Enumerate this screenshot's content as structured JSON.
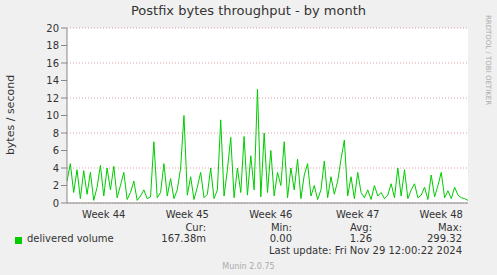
{
  "chart_data": {
    "type": "line",
    "title": "Postfix bytes throughput - by month",
    "y_label": "bytes / second",
    "categories": [
      null,
      null,
      null,
      null,
      null,
      null,
      null,
      null,
      null,
      null,
      null,
      "Week 44",
      null,
      null,
      null,
      null,
      null,
      null,
      null,
      null,
      null,
      null,
      null,
      null,
      null,
      null,
      null,
      null,
      null,
      null,
      null,
      null,
      null,
      null,
      null,
      null,
      "Week 45",
      null,
      null,
      null,
      null,
      null,
      null,
      null,
      null,
      null,
      null,
      null,
      null,
      null,
      null,
      null,
      null,
      null,
      null,
      null,
      null,
      null,
      null,
      null,
      null,
      "Week 46",
      null,
      null,
      null,
      null,
      null,
      null,
      null,
      null,
      null,
      null,
      null,
      null,
      null,
      null,
      null,
      null,
      null,
      null,
      null,
      null,
      null,
      null,
      null,
      null,
      null,
      "Week 47",
      null,
      null,
      null,
      null,
      null,
      null,
      null,
      null,
      null,
      null,
      null,
      null,
      null,
      null,
      null,
      null,
      null,
      null,
      null,
      null,
      null,
      null,
      null,
      null,
      "Week 48",
      null,
      null,
      null,
      null,
      null,
      null,
      null,
      null
    ],
    "series": [
      {
        "name": "delivered volume",
        "color": "#00cc00",
        "values": [
          2.5,
          4.5,
          1.2,
          3.8,
          0.5,
          3.7,
          1.0,
          3.5,
          0.3,
          1.8,
          4.3,
          0.8,
          4.0,
          1.5,
          4.2,
          0.6,
          2.0,
          3.5,
          0.4,
          1.2,
          2.5,
          0.3,
          0.8,
          1.5,
          0.5,
          0.7,
          7.0,
          0.6,
          1.2,
          4.5,
          0.8,
          2.8,
          0.5,
          1.5,
          4.0,
          10.0,
          0.9,
          3.0,
          0.4,
          1.8,
          3.5,
          0.6,
          1.0,
          4.0,
          0.5,
          1.5,
          9.5,
          0.8,
          3.8,
          7.5,
          0.6,
          4.0,
          1.2,
          7.6,
          0.9,
          5.4,
          1.5,
          13.0,
          0.7,
          8.0,
          1.2,
          6.0,
          0.8,
          3.5,
          2.0,
          7.0,
          0.6,
          4.0,
          1.5,
          5.0,
          0.5,
          3.2,
          4.5,
          0.8,
          2.0,
          0.4,
          1.5,
          4.8,
          0.6,
          3.0,
          1.0,
          2.5,
          5.0,
          7.2,
          0.8,
          3.0,
          0.5,
          3.5,
          1.2,
          0.6,
          1.5,
          0.4,
          2.0,
          0.8,
          1.2,
          0.5,
          0.9,
          2.2,
          0.6,
          4.0,
          0.8,
          3.8,
          0.5,
          1.5,
          2.2,
          0.6,
          0.9,
          1.8,
          0.4,
          3.2,
          0.7,
          2.0,
          3.5,
          0.6,
          1.4,
          0.5,
          1.8,
          0.9,
          0.6,
          0.5,
          0.3
        ]
      }
    ],
    "ylim": [
      0,
      20
    ],
    "yticks": [
      0,
      2,
      4,
      6,
      8,
      10,
      12,
      14,
      16,
      18,
      20
    ],
    "grid": true,
    "stats": [
      {
        "label": "Cur:",
        "value": {
          "value": 0.16738,
          "label": "167.38m"
        }
      },
      {
        "label": "Min:",
        "value": {
          "value": 0,
          "label": "0.00"
        }
      },
      {
        "label": "Avg:",
        "value": 1.26
      },
      {
        "label": "Max:",
        "value": 299.32
      }
    ],
    "last_update": "Last update: Fri Nov 29 12:00:22 2024",
    "footer": "Munin 2.0.75",
    "watermark": "RRDTOOL / TOBI OETIKER"
  }
}
